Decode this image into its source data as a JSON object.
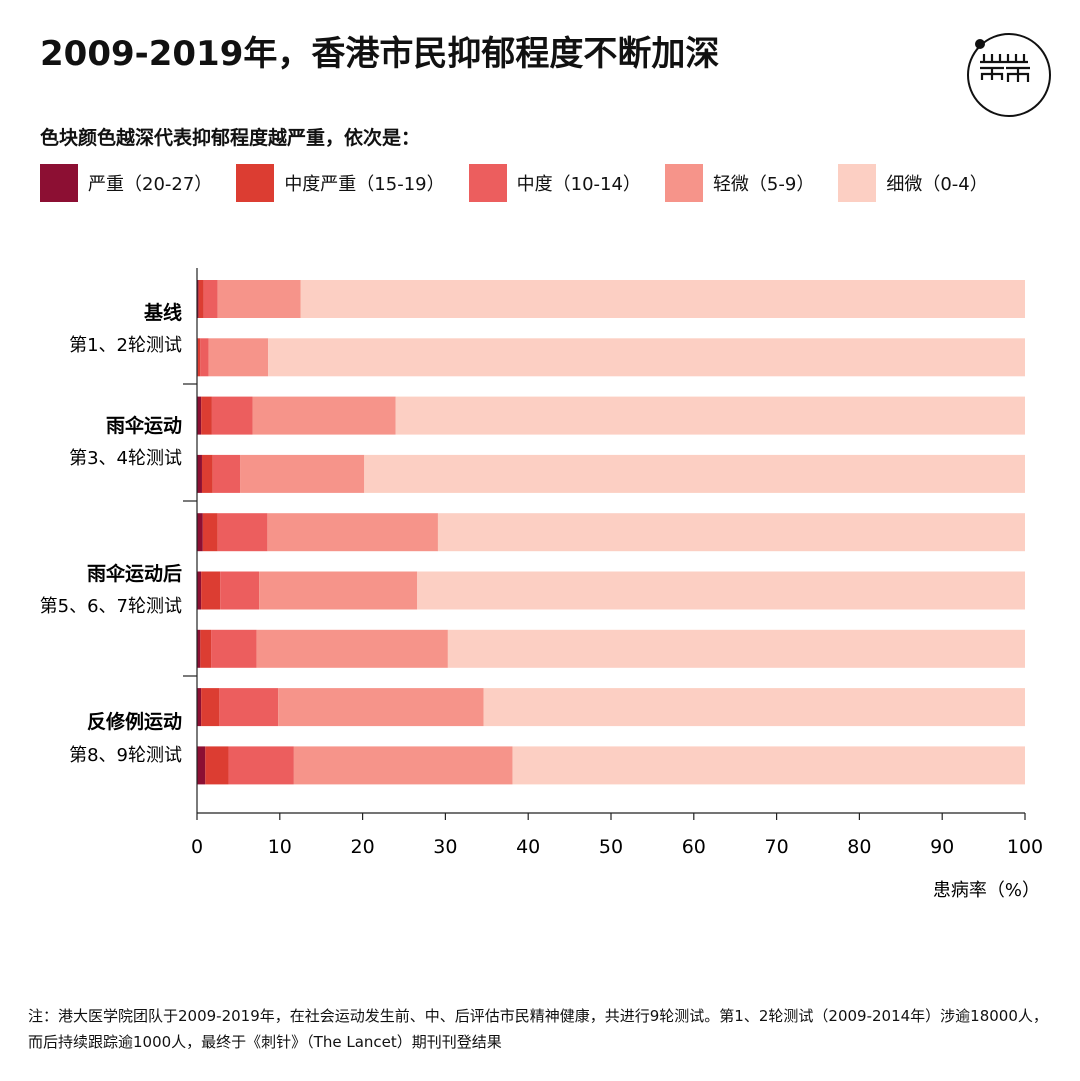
{
  "title": "2009-2019年，香港市民抑郁程度不断加深",
  "logo": {
    "icon": "initium-logo-icon",
    "text": "端"
  },
  "legend_title": "色块颜色越深代表抑郁程度越严重，依次是：",
  "legend": [
    {
      "label": "严重（20-27）",
      "color": "#8c0f33"
    },
    {
      "label": "中度严重（15-19）",
      "color": "#dc3d32"
    },
    {
      "label": "中度（10-14）",
      "color": "#ec5e5e"
    },
    {
      "label": "轻微（5-9）",
      "color": "#f6948a"
    },
    {
      "label": "细微（0-4）",
      "color": "#fccfc3"
    }
  ],
  "groups": [
    {
      "title": "基线",
      "subtitle": "第1、2轮测试"
    },
    {
      "title": "雨伞运动",
      "subtitle": "第3、4轮测试"
    },
    {
      "title": "雨伞运动后",
      "subtitle": "第5、6、7轮测试"
    },
    {
      "title": "反修例运动",
      "subtitle": "第8、9轮测试"
    }
  ],
  "chart_data": {
    "type": "bar",
    "orientation": "horizontal",
    "stacked": true,
    "xlabel": "患病率（%）",
    "xlim": [
      0,
      100
    ],
    "xticks": [
      0,
      10,
      20,
      30,
      40,
      50,
      60,
      70,
      80,
      90,
      100
    ],
    "grid": false,
    "categories": [
      "第1轮",
      "第2轮",
      "第3轮",
      "第4轮",
      "第5轮",
      "第6轮",
      "第7轮",
      "第8轮",
      "第9轮"
    ],
    "group_of_category": [
      0,
      0,
      1,
      1,
      2,
      2,
      2,
      3,
      3
    ],
    "series": [
      {
        "name": "严重（20-27）",
        "values": [
          0.2,
          0.1,
          0.5,
          0.6,
          0.7,
          0.5,
          0.4,
          0.5,
          1.0
        ]
      },
      {
        "name": "中度严重（15-19）",
        "values": [
          0.6,
          0.3,
          1.3,
          1.3,
          1.8,
          2.3,
          1.3,
          2.2,
          2.8
        ]
      },
      {
        "name": "中度（10-14）",
        "values": [
          1.7,
          1.0,
          4.9,
          3.3,
          6.0,
          4.7,
          5.5,
          7.1,
          7.9
        ]
      },
      {
        "name": "轻微（5-9）",
        "values": [
          10.0,
          7.2,
          17.3,
          15.0,
          20.6,
          19.1,
          23.1,
          24.8,
          26.4
        ]
      },
      {
        "name": "细微（0-4）",
        "values": [
          87.5,
          91.4,
          76.0,
          79.8,
          70.9,
          73.4,
          69.7,
          65.4,
          61.9
        ]
      }
    ]
  },
  "note": "注：港大医学院团队于2009-2019年，在社会运动发生前、中、后评估市民精神健康，共进行9轮测试。第1、2轮测试（2009-2014年）涉逾18000人，而后持续跟踪逾1000人，最终于《刺针》（The Lancet）期刊刊登结果"
}
